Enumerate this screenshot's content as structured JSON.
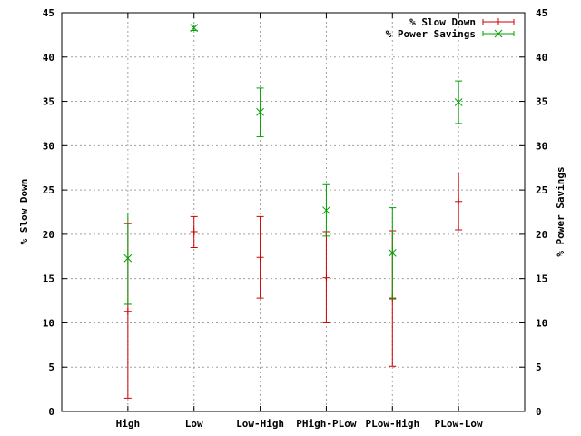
{
  "chart_data": {
    "type": "scatter",
    "title": "",
    "categories": [
      "High",
      "Low",
      "Low-High",
      "PHigh-PLow",
      "PLow-High",
      "PLow-Low"
    ],
    "ylabel_left": "% Slow Down",
    "ylabel_right": "% Power Savings",
    "ylim": [
      0,
      45
    ],
    "yticks": [
      0,
      5,
      10,
      15,
      20,
      25,
      30,
      35,
      40,
      45
    ],
    "grid": true,
    "legend_position": "top-right",
    "series": [
      {
        "name": "% Slow Down",
        "color": "#cc0000",
        "marker": "plus",
        "points": [
          {
            "y": 11.3,
            "low": 1.5,
            "high": 21.2
          },
          {
            "y": 20.3,
            "low": 18.5,
            "high": 22.0
          },
          {
            "y": 17.4,
            "low": 12.8,
            "high": 22.0
          },
          {
            "y": 15.1,
            "low": 10.0,
            "high": 20.3
          },
          {
            "y": 12.8,
            "low": 5.1,
            "high": 20.4
          },
          {
            "y": 23.7,
            "low": 20.5,
            "high": 26.9
          }
        ]
      },
      {
        "name": "% Power Savings",
        "color": "#00a000",
        "marker": "cross",
        "points": [
          {
            "y": 17.3,
            "low": 12.1,
            "high": 22.4
          },
          {
            "y": 43.3,
            "low": 43.0,
            "high": 43.6
          },
          {
            "y": 33.8,
            "low": 31.0,
            "high": 36.5
          },
          {
            "y": 22.7,
            "low": 19.8,
            "high": 25.6
          },
          {
            "y": 17.9,
            "low": 12.7,
            "high": 23.0
          },
          {
            "y": 34.9,
            "low": 32.5,
            "high": 37.3
          }
        ]
      }
    ]
  }
}
